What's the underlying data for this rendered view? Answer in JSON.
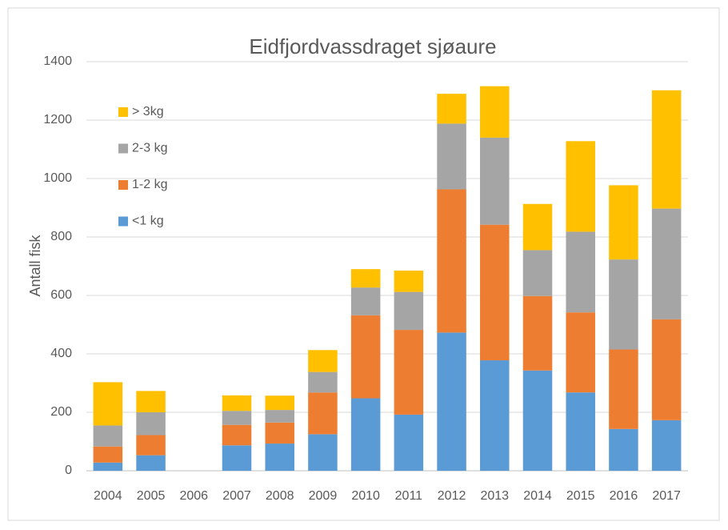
{
  "chart_data": {
    "type": "stacked_bar",
    "title": "Eidfjordvassdraget sjøaure",
    "y_label": "Antall fisk",
    "categories": [
      "2004",
      "2005",
      "2006",
      "2007",
      "2008",
      "2009",
      "2010",
      "2011",
      "2012",
      "2013",
      "2014",
      "2015",
      "2016",
      "2017"
    ],
    "series": [
      {
        "name": "<1 kg",
        "color": "#5b9bd5",
        "values": [
          28,
          53,
          null,
          87,
          93,
          125,
          248,
          192,
          473,
          378,
          343,
          268,
          143,
          173
        ]
      },
      {
        "name": "1-2 kg",
        "color": "#ed7d31",
        "values": [
          55,
          69,
          null,
          70,
          72,
          143,
          284,
          290,
          490,
          464,
          255,
          274,
          272,
          345
        ]
      },
      {
        "name": "2-3 kg",
        "color": "#a5a5a5",
        "values": [
          72,
          78,
          null,
          48,
          43,
          70,
          95,
          130,
          225,
          298,
          157,
          276,
          308,
          379
        ]
      },
      {
        "name": "> 3kg",
        "color": "#ffc000",
        "values": [
          148,
          73,
          null,
          53,
          49,
          75,
          63,
          73,
          102,
          176,
          158,
          310,
          254,
          405
        ]
      }
    ],
    "ylim": [
      0,
      1400
    ],
    "yticks": [
      0,
      200,
      400,
      600,
      800,
      1000,
      1200,
      1400
    ],
    "grid": true,
    "legend": "upper-left"
  }
}
